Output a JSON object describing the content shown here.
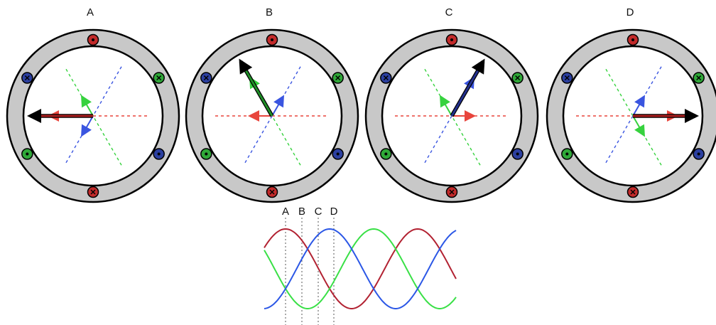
{
  "panels": [
    {
      "label": "A",
      "angle_deg": 180
    },
    {
      "label": "B",
      "angle_deg": 120
    },
    {
      "label": "C",
      "angle_deg": 60
    },
    {
      "label": "D",
      "angle_deg": 0
    }
  ],
  "phases": [
    {
      "color": "#e8453c",
      "dark": "#a61c1c",
      "coil_fill": "#c22a2a",
      "axis_deg": 0
    },
    {
      "color": "#36d23e",
      "dark": "#1f8e27",
      "coil_fill": "#2fa838",
      "axis_deg": 120
    },
    {
      "color": "#3a55e0",
      "dark": "#23308e",
      "coil_fill": "#2b3fa0",
      "axis_deg": 240
    }
  ],
  "resultant_color": "#000000",
  "wave_markers": [
    "A",
    "B",
    "C",
    "D"
  ],
  "wave_colors": {
    "red": "#b22232",
    "green": "#39e046",
    "blue": "#2b57e6"
  }
}
